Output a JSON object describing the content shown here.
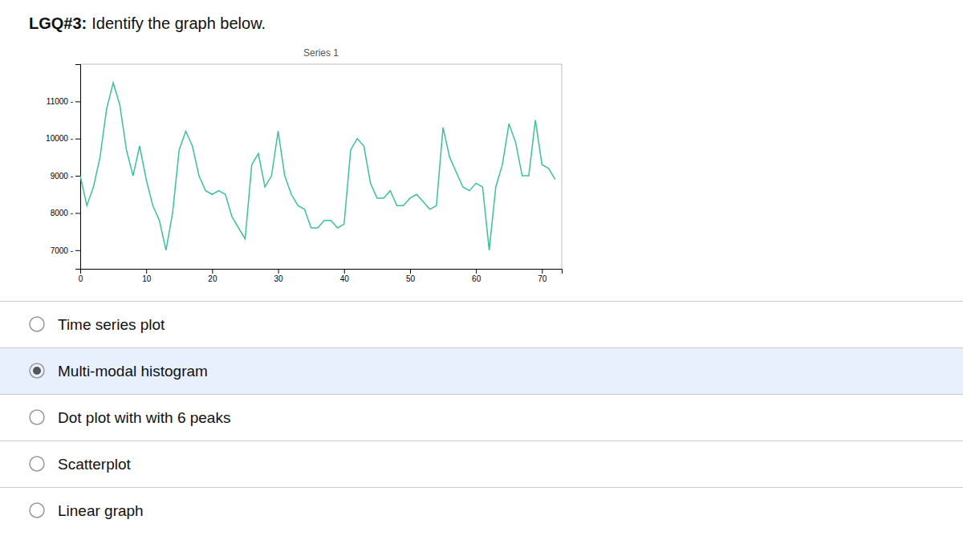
{
  "heading": {
    "bold": "LGQ#3:",
    "text": "Identify the graph below."
  },
  "options": [
    {
      "text": "Time series plot",
      "selected": false
    },
    {
      "text": "Multi-modal histogram",
      "selected": true
    },
    {
      "text": "Dot plot with with 6 peaks",
      "selected": false
    },
    {
      "text": "Scatterplot",
      "selected": false
    },
    {
      "text": "Linear graph",
      "selected": false
    }
  ],
  "chart_data": {
    "type": "line",
    "title": "Series 1",
    "color": "#3dbf9e",
    "grid": false,
    "x": [
      0,
      1,
      2,
      3,
      4,
      5,
      6,
      7,
      8,
      9,
      10,
      11,
      12,
      13,
      14,
      15,
      16,
      17,
      18,
      19,
      20,
      21,
      22,
      23,
      24,
      25,
      26,
      27,
      28,
      29,
      30,
      31,
      32,
      33,
      34,
      35,
      36,
      37,
      38,
      39,
      40,
      41,
      42,
      43,
      44,
      45,
      46,
      47,
      48,
      49,
      50,
      51,
      52,
      53,
      54,
      55,
      56,
      57,
      58,
      59,
      60,
      61,
      62,
      63,
      64,
      65,
      66,
      67,
      68,
      69,
      70,
      71,
      72
    ],
    "values": [
      9000,
      8200,
      8700,
      9500,
      10800,
      11500,
      10900,
      9700,
      9000,
      9800,
      8900,
      8200,
      7800,
      7000,
      8000,
      9700,
      10200,
      9800,
      9000,
      8600,
      8500,
      8600,
      8500,
      7900,
      7600,
      7300,
      9300,
      9600,
      8700,
      9000,
      10200,
      9000,
      8500,
      8200,
      8100,
      7600,
      7600,
      7800,
      7800,
      7600,
      7700,
      9700,
      10000,
      9800,
      8800,
      8400,
      8400,
      8600,
      8200,
      8200,
      8400,
      8500,
      8300,
      8100,
      8200,
      10300,
      9500,
      9100,
      8700,
      8600,
      8800,
      8700,
      7000,
      8700,
      9300,
      10400,
      9900,
      9000,
      9000,
      10500,
      9300,
      9200,
      8900
    ],
    "xlim": [
      0,
      73
    ],
    "ylim": [
      6500,
      12000
    ],
    "xticks": [
      0,
      10,
      20,
      30,
      40,
      50,
      60,
      70
    ],
    "yticks": [
      {
        "value": 7000,
        "label": " 7000 -"
      },
      {
        "value": 8000,
        "label": " 8000 -"
      },
      {
        "value": 9000,
        "label": " 9000 -"
      },
      {
        "value": 10000,
        "label": "10000 -"
      },
      {
        "value": 11000,
        "label": "11000 -"
      }
    ]
  }
}
